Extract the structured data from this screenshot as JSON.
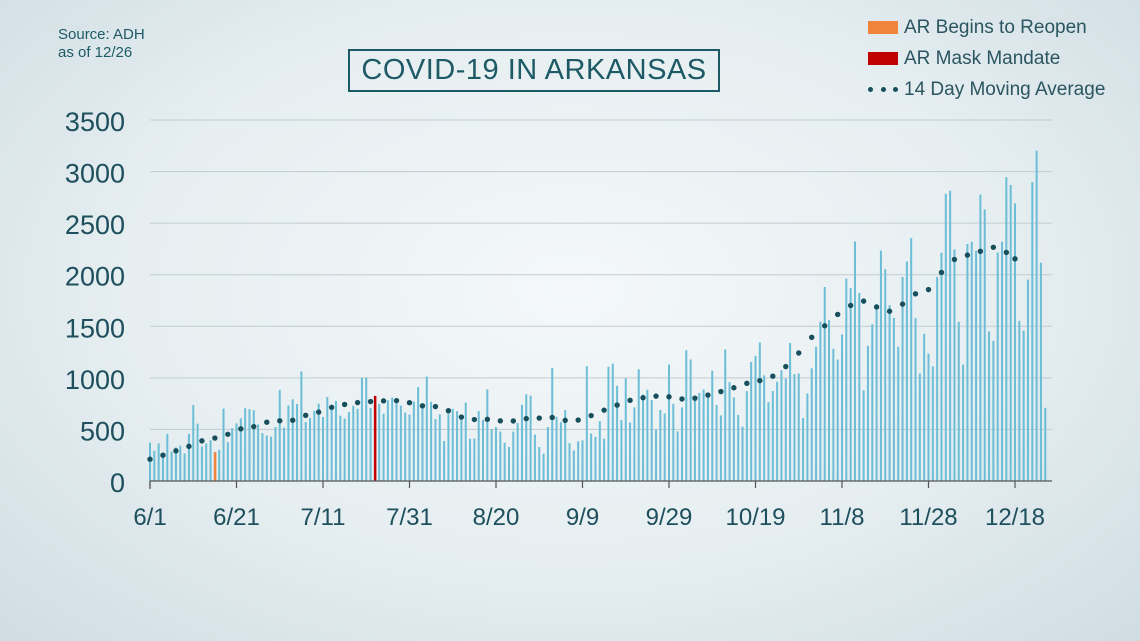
{
  "source_line1": "Source: ADH",
  "source_line2": "as of 12/26",
  "title": "COVID-19 IN ARKANSAS",
  "legend": [
    {
      "label": "AR Begins to Reopen",
      "color": "#f0843a",
      "kind": "swatch"
    },
    {
      "label": "AR Mask Mandate",
      "color": "#c00000",
      "kind": "swatch"
    },
    {
      "label": "14 Day Moving Average",
      "color": "#174f5c",
      "kind": "dots"
    }
  ],
  "chart_data": {
    "type": "bar",
    "start_date": "6/1",
    "x_tick_labels": [
      "6/1",
      "6/21",
      "7/11",
      "7/31",
      "8/20",
      "9/9",
      "9/29",
      "10/19",
      "11/8",
      "11/28",
      "12/18"
    ],
    "y_ticks": [
      0,
      500,
      1000,
      1500,
      2000,
      2500,
      3000,
      3500
    ],
    "ylim": [
      0,
      3500
    ],
    "bar_color": "#6cbdd6",
    "highlights": [
      {
        "day_index": 15,
        "label": "AR Begins to Reopen",
        "color": "#f0843a"
      },
      {
        "day_index": 52,
        "label": "AR Mask Mandate",
        "color": "#c00000"
      }
    ],
    "daily_cases": [
      372,
      292,
      364,
      248,
      455,
      285,
      325,
      342,
      268,
      457,
      736,
      556,
      335,
      364,
      395,
      279,
      303,
      702,
      376,
      511,
      559,
      608,
      705,
      697,
      686,
      549,
      464,
      441,
      430,
      523,
      884,
      517,
      732,
      792,
      746,
      1061,
      572,
      610,
      681,
      750,
      621,
      815,
      690,
      776,
      633,
      606,
      667,
      729,
      701,
      1003,
      1003,
      708,
      825,
      748,
      652,
      782,
      808,
      753,
      731,
      663,
      644,
      771,
      911,
      748,
      1013,
      767,
      601,
      646,
      388,
      655,
      700,
      677,
      640,
      760,
      410,
      412,
      678,
      592,
      888,
      502,
      523,
      480,
      371,
      329,
      480,
      562,
      740,
      840,
      827,
      450,
      329,
      265,
      523,
      1095,
      622,
      570,
      687,
      366,
      296,
      384,
      394,
      1113,
      460,
      428,
      580,
      410,
      1109,
      1137,
      923,
      592,
      996,
      567,
      714,
      1083,
      838,
      884,
      785,
      498,
      689,
      654,
      1129,
      748,
      481,
      713,
      1269,
      1178,
      788,
      853,
      887,
      821,
      1070,
      738,
      636,
      1275,
      958,
      810,
      641,
      527,
      871,
      1154,
      1214,
      1343,
      1024,
      764,
      873,
      963,
      1074,
      994,
      1337,
      1036,
      1042,
      610,
      849,
      1093,
      1302,
      1545,
      1881,
      1559,
      1282,
      1178,
      1420,
      1963,
      1870,
      2322,
      1823,
      878,
      1311,
      1520,
      1715,
      2234,
      2053,
      1705,
      1582,
      1302,
      1978,
      2128,
      2355,
      1579,
      1041,
      1427,
      1235,
      1112,
      1978,
      2213,
      2785,
      2815,
      2244,
      1543,
      1128,
      2298,
      2319,
      2231,
      2777,
      2633,
      1450,
      1359,
      2216,
      2320,
      2946,
      2870,
      2692,
      1552,
      1457,
      1952,
      2897,
      3203,
      2116,
      710
    ],
    "moving_average": [
      211,
      216,
      229,
      250,
      268,
      280,
      293,
      306,
      314,
      336,
      369,
      383,
      389,
      396,
      405,
      416,
      426,
      435,
      453,
      469,
      482,
      506,
      514,
      520,
      527,
      535,
      546,
      570,
      585,
      586,
      584,
      578,
      580,
      589,
      607,
      621,
      637,
      644,
      655,
      668,
      681,
      695,
      714,
      724,
      735,
      742,
      749,
      754,
      760,
      767,
      767,
      770,
      773,
      774,
      777,
      778,
      776,
      779,
      777,
      771,
      759,
      746,
      736,
      729,
      726,
      726,
      722,
      713,
      700,
      682,
      664,
      640,
      620,
      600,
      598,
      596,
      596,
      603,
      598,
      594,
      589,
      583,
      580,
      581,
      582,
      588,
      596,
      605,
      609,
      609,
      610,
      611,
      612,
      616,
      606,
      594,
      588,
      584,
      584,
      591,
      605,
      620,
      634,
      649,
      664,
      687,
      706,
      723,
      736,
      752,
      767,
      782,
      794,
      800,
      808,
      815,
      820,
      823,
      824,
      821,
      816,
      808,
      799,
      795,
      794,
      797,
      803,
      810,
      822,
      833,
      841,
      854,
      867,
      880,
      892,
      904,
      918,
      933,
      947,
      958,
      968,
      973,
      983,
      997,
      1016,
      1049,
      1076,
      1109,
      1146,
      1192,
      1241,
      1290,
      1339,
      1393,
      1428,
      1468,
      1505,
      1543,
      1576,
      1615,
      1650,
      1680,
      1702,
      1710,
      1729,
      1744,
      1736,
      1715,
      1687,
      1653,
      1637,
      1646,
      1658,
      1677,
      1715,
      1767,
      1798,
      1815,
      1812,
      1826,
      1856,
      1905,
      1960,
      2022,
      2078,
      2121,
      2148,
      2167,
      2180,
      2190,
      2198,
      2210,
      2227,
      2244,
      2255,
      2266,
      2271,
      2241,
      2216,
      2181,
      2154
    ]
  }
}
